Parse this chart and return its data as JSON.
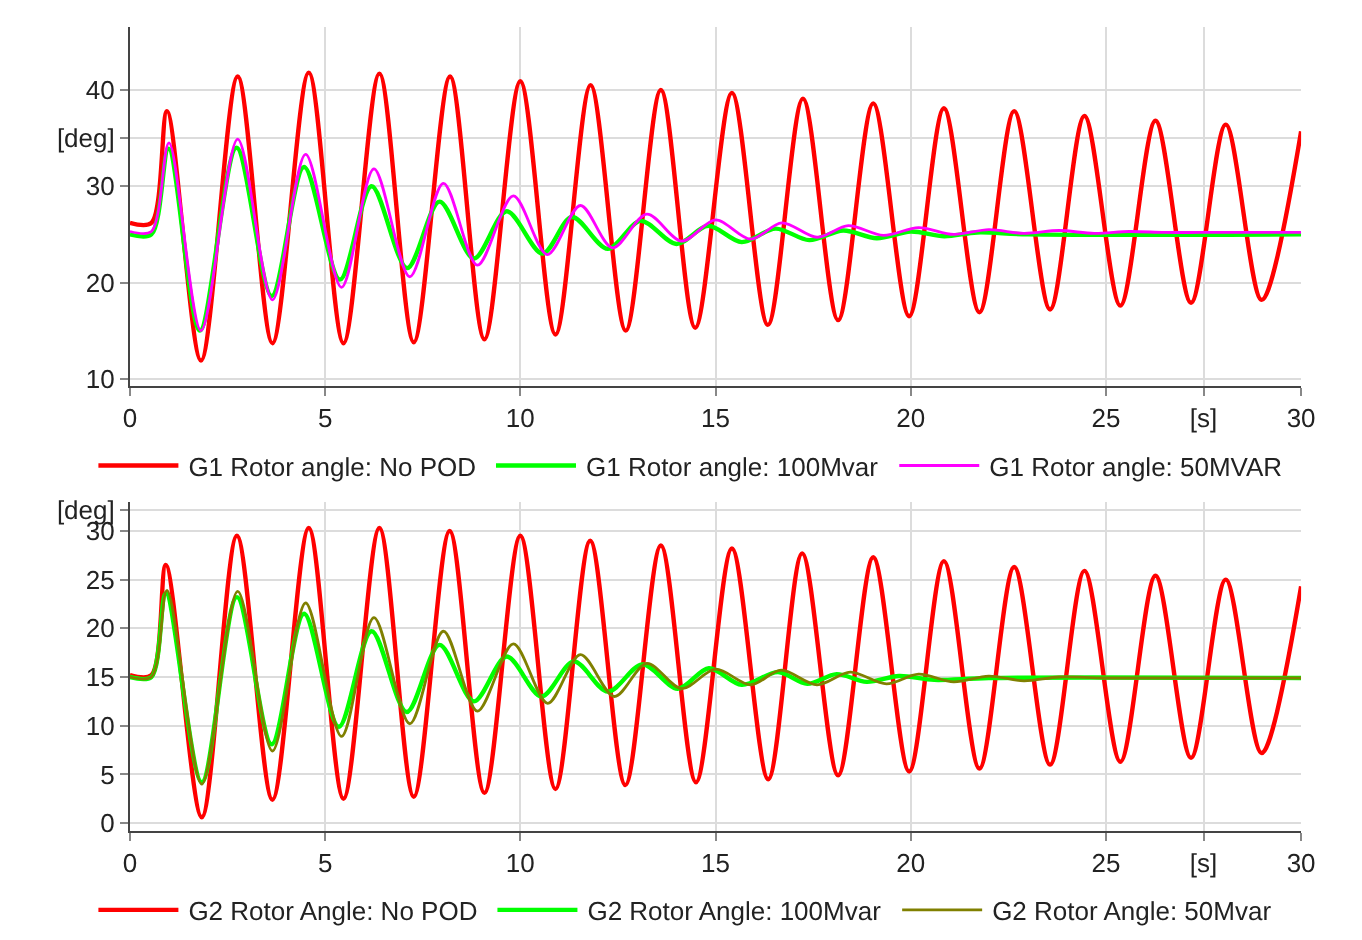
{
  "chart_data": [
    {
      "type": "line",
      "xlim": [
        0,
        30
      ],
      "ylim": [
        9.3,
        46.5
      ],
      "xticks": [
        0,
        5,
        10,
        15,
        20,
        25,
        {
          "value": 27.5,
          "label": "[s]"
        },
        30
      ],
      "yticks": [
        10,
        20,
        30,
        {
          "value": 35,
          "label": "[deg]"
        },
        40
      ],
      "grid": true,
      "legend": "bottom",
      "marker": "none",
      "line_style": "solid",
      "series": [
        {
          "name": "G1 Rotor angle: No POD",
          "color": "#ff0000",
          "x": [
            0,
            0.55,
            0.95,
            1.82,
            2.76,
            3.65,
            4.58,
            5.47,
            6.39,
            7.27,
            8.2,
            9.08,
            10.0,
            10.9,
            11.8,
            12.7,
            13.6,
            14.48,
            15.42,
            16.34,
            17.24,
            18.14,
            19.04,
            19.96,
            20.85,
            21.76,
            22.65,
            23.57,
            24.45,
            25.37,
            26.27,
            27.18,
            28.07,
            28.99,
            30
          ],
          "values": [
            26.2,
            26.2,
            37.8,
            11.9,
            41.4,
            13.7,
            41.8,
            13.7,
            41.7,
            13.8,
            41.4,
            14.1,
            40.9,
            14.6,
            40.5,
            15.0,
            40.0,
            15.3,
            39.7,
            15.6,
            39.1,
            16.1,
            38.6,
            16.5,
            38.1,
            16.9,
            37.8,
            17.2,
            37.3,
            17.6,
            36.8,
            17.9,
            36.4,
            18.2,
            35.7
          ]
        },
        {
          "name": "G1 Rotor angle: 100Mvar",
          "color": "#00ff00",
          "x": [
            0,
            0.55,
            0.99,
            1.79,
            2.73,
            3.63,
            4.46,
            5.38,
            6.19,
            7.1,
            7.93,
            8.81,
            9.65,
            10.57,
            11.32,
            12.24,
            13.08,
            14.0,
            14.81,
            15.67,
            16.54,
            17.4,
            18.27,
            19.13,
            20.0,
            20.86,
            21.7,
            23,
            30
          ],
          "values": [
            25.0,
            25.0,
            33.9,
            15.0,
            34.0,
            18.6,
            32.0,
            20.3,
            30.0,
            21.5,
            28.4,
            22.5,
            27.4,
            23.0,
            26.8,
            23.5,
            26.4,
            24.0,
            25.9,
            24.2,
            25.6,
            24.4,
            25.4,
            24.6,
            25.3,
            24.8,
            25.2,
            25.0,
            25.0
          ]
        },
        {
          "name": "G1 Rotor angle: 50MVAR",
          "color": "#ff00ff",
          "x": [
            0,
            0.55,
            1.0,
            1.82,
            2.76,
            3.65,
            4.5,
            5.42,
            6.25,
            7.17,
            8.03,
            8.9,
            9.82,
            10.69,
            11.54,
            12.36,
            13.24,
            14.13,
            15.0,
            15.9,
            16.7,
            17.6,
            18.4,
            19.3,
            20.2,
            21.1,
            22.0,
            22.9,
            23.8,
            24.7,
            25.6,
            26.5,
            27.4,
            28.3,
            29.2,
            30
          ],
          "values": [
            25.3,
            25.3,
            34.5,
            15.0,
            34.9,
            18.2,
            33.3,
            19.5,
            31.8,
            20.6,
            30.3,
            21.8,
            29.0,
            22.9,
            28.0,
            23.6,
            27.1,
            24.3,
            26.5,
            24.5,
            26.2,
            24.7,
            25.9,
            24.9,
            25.7,
            25.0,
            25.5,
            25.1,
            25.4,
            25.1,
            25.3,
            25.2,
            25.2,
            25.2,
            25.2,
            25.2
          ]
        }
      ]
    },
    {
      "type": "line",
      "xlim": [
        0,
        30
      ],
      "ylim": [
        -0.8,
        33
      ],
      "xticks": [
        0,
        5,
        10,
        15,
        20,
        25,
        {
          "value": 27.5,
          "label": "[s]"
        },
        30
      ],
      "yticks": [
        0,
        5,
        10,
        15,
        20,
        25,
        30,
        {
          "value": 32.2,
          "label": "[deg]"
        }
      ],
      "grid": true,
      "legend": "bottom",
      "marker": "none",
      "line_style": "solid",
      "series": [
        {
          "name": "G2 Rotor Angle: No POD",
          "color": "#ff0000",
          "x": [
            0,
            0.55,
            0.92,
            1.84,
            2.74,
            3.65,
            4.58,
            5.47,
            6.39,
            7.27,
            8.19,
            9.08,
            10.0,
            10.9,
            11.79,
            12.69,
            13.6,
            14.5,
            15.42,
            16.35,
            17.22,
            18.14,
            19.04,
            19.96,
            20.85,
            21.76,
            22.65,
            23.57,
            24.45,
            25.37,
            26.27,
            27.18,
            28.07,
            28.99,
            30
          ],
          "values": [
            15.2,
            15.2,
            26.5,
            0.6,
            29.5,
            2.4,
            30.3,
            2.5,
            30.3,
            2.7,
            30.0,
            3.1,
            29.5,
            3.5,
            29.0,
            3.9,
            28.5,
            4.2,
            28.2,
            4.5,
            27.7,
            4.9,
            27.3,
            5.3,
            26.9,
            5.6,
            26.3,
            6.0,
            25.9,
            6.3,
            25.4,
            6.7,
            25.0,
            7.2,
            24.3
          ]
        },
        {
          "name": "G2 Rotor Angle: 100Mvar",
          "color": "#00ff00",
          "x": [
            0,
            0.55,
            0.92,
            1.84,
            2.74,
            3.63,
            4.46,
            5.35,
            6.19,
            7.09,
            7.93,
            8.81,
            9.65,
            10.54,
            11.37,
            12.24,
            13.13,
            14.03,
            14.83,
            15.67,
            16.6,
            17.35,
            18.1,
            18.87,
            19.7,
            20.6,
            22,
            30
          ],
          "values": [
            15.0,
            15.0,
            23.6,
            4.2,
            23.2,
            8.1,
            21.5,
            9.9,
            19.7,
            11.4,
            18.3,
            12.5,
            17.1,
            13.0,
            16.6,
            13.5,
            16.3,
            13.8,
            15.9,
            14.2,
            15.5,
            14.3,
            15.3,
            14.5,
            15.1,
            14.7,
            14.9,
            14.9
          ]
        },
        {
          "name": "G2 Rotor Angle: 50Mvar",
          "color": "#808000",
          "x": [
            0,
            0.55,
            0.95,
            1.84,
            2.76,
            3.65,
            4.5,
            5.42,
            6.25,
            7.17,
            8.03,
            8.9,
            9.82,
            10.7,
            11.54,
            12.41,
            13.24,
            14.13,
            15.0,
            15.9,
            16.68,
            17.6,
            18.45,
            19.38,
            20.2,
            21.1,
            22.0,
            22.9,
            23.8,
            25,
            30
          ],
          "values": [
            15.0,
            15.0,
            23.9,
            4.0,
            23.8,
            7.4,
            22.6,
            8.9,
            21.1,
            10.2,
            19.7,
            11.5,
            18.4,
            12.3,
            17.3,
            13.0,
            16.4,
            13.8,
            15.8,
            14.2,
            15.7,
            14.2,
            15.5,
            14.3,
            15.3,
            14.5,
            15.1,
            14.6,
            15.0,
            14.9,
            14.9
          ]
        }
      ]
    }
  ]
}
